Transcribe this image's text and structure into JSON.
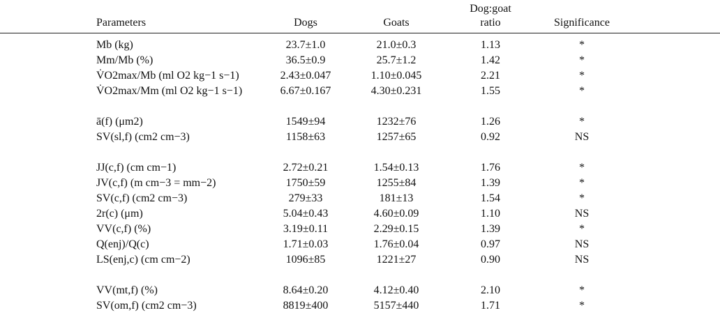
{
  "header": {
    "parameters": "Parameters",
    "dogs": "Dogs",
    "goats": "Goats",
    "ratio_line1": "Dog:goat",
    "ratio_line2": "ratio",
    "significance": "Significance"
  },
  "rows": [
    {
      "param": "Mb (kg)",
      "dogs": "23.7±1.0",
      "goats": "21.0±0.3",
      "ratio": "1.13",
      "sig": "*"
    },
    {
      "param": "Mm/Mb (%)",
      "dogs": "36.5±0.9",
      "goats": "25.7±1.2",
      "ratio": "1.42",
      "sig": "*"
    },
    {
      "param": "V̇O2max/Mb (ml O2 kg−1 s−1)",
      "dogs": "2.43±0.047",
      "goats": "1.10±0.045",
      "ratio": "2.21",
      "sig": "*"
    },
    {
      "param": "V̇O2max/Mm (ml O2 kg−1 s−1)",
      "dogs": "6.67±0.167",
      "goats": "4.30±0.231",
      "ratio": "1.55",
      "sig": "*"
    },
    {
      "param": "ā(f) (μm2)",
      "dogs": "1549±94",
      "goats": "1232±76",
      "ratio": "1.26",
      "sig": "*"
    },
    {
      "param": "SV(sl,f) (cm2 cm−3)",
      "dogs": "1158±63",
      "goats": "1257±65",
      "ratio": "0.92",
      "sig": "NS"
    },
    {
      "param": "JJ(c,f) (cm cm−1)",
      "dogs": "2.72±0.21",
      "goats": "1.54±0.13",
      "ratio": "1.76",
      "sig": "*"
    },
    {
      "param": "JV(c,f) (m cm−3 = mm−2)",
      "dogs": "1750±59",
      "goats": "1255±84",
      "ratio": "1.39",
      "sig": "*"
    },
    {
      "param": "SV(c,f) (cm2 cm−3)",
      "dogs": "279±33",
      "goats": "181±13",
      "ratio": "1.54",
      "sig": "*"
    },
    {
      "param": "2r(c) (μm)",
      "dogs": "5.04±0.43",
      "goats": "4.60±0.09",
      "ratio": "1.10",
      "sig": "NS"
    },
    {
      "param": "VV(c,f) (%)",
      "dogs": "3.19±0.11",
      "goats": "2.29±0.15",
      "ratio": "1.39",
      "sig": "*"
    },
    {
      "param": "Q(enj)/Q(c)",
      "dogs": "1.71±0.03",
      "goats": "1.76±0.04",
      "ratio": "0.97",
      "sig": "NS"
    },
    {
      "param": "LS(enj,c) (cm cm−2)",
      "dogs": "1096±85",
      "goats": "1221±27",
      "ratio": "0.90",
      "sig": "NS"
    },
    {
      "param": "VV(mt,f) (%)",
      "dogs": "8.64±0.20",
      "goats": "4.12±0.40",
      "ratio": "2.10",
      "sig": "*"
    },
    {
      "param": "SV(om,f) (cm2 cm−3)",
      "dogs": "8819±400",
      "goats": "5157±440",
      "ratio": "1.71",
      "sig": "*"
    }
  ]
}
